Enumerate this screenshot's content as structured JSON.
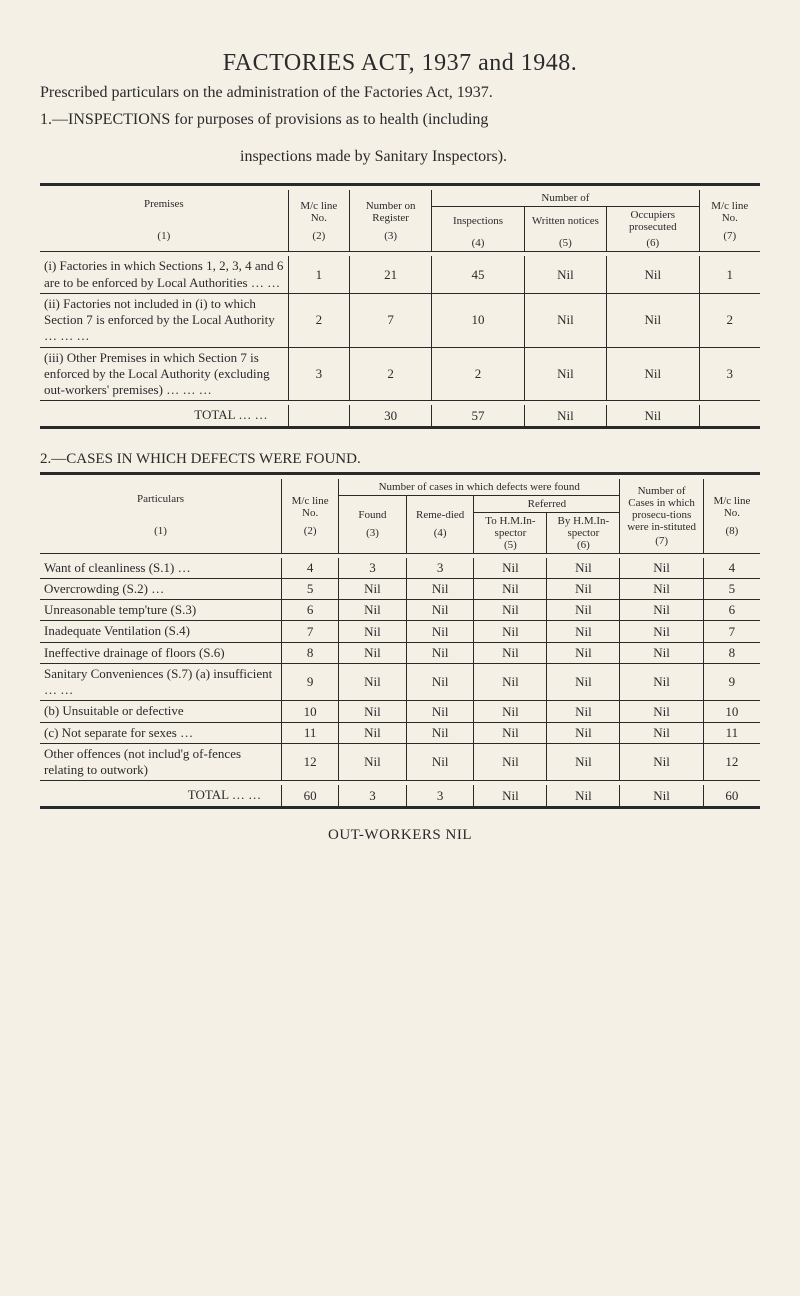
{
  "title": "FACTORIES ACT, 1937 and 1948.",
  "intro": "Prescribed particulars on the administration of the Factories Act, 1937.",
  "section1_head": "1.—INSPECTIONS for purposes of provisions as to health (including",
  "section1_head_cont": "inspections made by Sanitary Inspectors).",
  "t1": {
    "headers": {
      "premises": "Premises",
      "mcline": "M/c line No.",
      "numreg": "Number on Register",
      "numberof": "Number of",
      "inspections": "Inspections",
      "written": "Written notices",
      "occupiers": "Occupiers prosecuted",
      "mcline2": "M/c line No."
    },
    "colnums": [
      "(1)",
      "(2)",
      "(3)",
      "(4)",
      "(5)",
      "(6)",
      "(7)"
    ],
    "rows": [
      {
        "label": "(i) Factories in which Sections 1, 2, 3, 4 and 6 are to be enforced by Local Authorities   …   …",
        "v": [
          "1",
          "21",
          "45",
          "Nil",
          "Nil",
          "1"
        ]
      },
      {
        "label": "(ii) Factories not included in (i) to which Section 7 is enforced by the Local Authority   …   …   …",
        "v": [
          "2",
          "7",
          "10",
          "Nil",
          "Nil",
          "2"
        ]
      },
      {
        "label": "(iii) Other Premises in which Section 7 is enforced by the Local Authority (excluding out-workers' premises)   …   …   …",
        "v": [
          "3",
          "2",
          "2",
          "Nil",
          "Nil",
          "3"
        ]
      }
    ],
    "total": {
      "label": "TOTAL   …   …",
      "v": [
        "",
        "30",
        "57",
        "Nil",
        "Nil",
        ""
      ]
    }
  },
  "section2_head": "2.—CASES IN WHICH DEFECTS WERE FOUND.",
  "t2": {
    "headers": {
      "particulars": "Particulars",
      "mcline": "M/c line No.",
      "numcases": "Number of cases in which defects were found",
      "found": "Found",
      "reme": "Reme-died",
      "referred": "Referred",
      "to": "To H.M.In-spector",
      "by": "By H.M.In-spector",
      "numberwhich": "Number of Cases in which prosecu-tions were in-stituted",
      "mcline2": "M/c line No."
    },
    "colnums": [
      "(1)",
      "(2)",
      "(3)",
      "(4)",
      "(5)",
      "(6)",
      "(7)",
      "(8)"
    ],
    "rows": [
      {
        "label": "Want of cleanliness (S.1)   …",
        "v": [
          "4",
          "3",
          "3",
          "Nil",
          "Nil",
          "Nil",
          "4"
        ]
      },
      {
        "label": "Overcrowding (S.2)            …",
        "v": [
          "5",
          "Nil",
          "Nil",
          "Nil",
          "Nil",
          "Nil",
          "5"
        ]
      },
      {
        "label": "Unreasonable temp'ture (S.3)",
        "v": [
          "6",
          "Nil",
          "Nil",
          "Nil",
          "Nil",
          "Nil",
          "6"
        ]
      },
      {
        "label": "Inadequate Ventilation (S.4)",
        "v": [
          "7",
          "Nil",
          "Nil",
          "Nil",
          "Nil",
          "Nil",
          "7"
        ]
      },
      {
        "label": "Ineffective drainage of floors (S.6)",
        "v": [
          "8",
          "Nil",
          "Nil",
          "Nil",
          "Nil",
          "Nil",
          "8"
        ]
      },
      {
        "label": "Sanitary Conveniences (S.7) (a) insufficient   …   …",
        "v": [
          "9",
          "Nil",
          "Nil",
          "Nil",
          "Nil",
          "Nil",
          "9"
        ]
      },
      {
        "label": "  (b) Unsuitable or defective",
        "v": [
          "10",
          "Nil",
          "Nil",
          "Nil",
          "Nil",
          "Nil",
          "10"
        ]
      },
      {
        "label": "  (c) Not separate for sexes …",
        "v": [
          "11",
          "Nil",
          "Nil",
          "Nil",
          "Nil",
          "Nil",
          "11"
        ]
      },
      {
        "label": "Other offences (not includ'g of-fences relating to outwork)",
        "v": [
          "12",
          "Nil",
          "Nil",
          "Nil",
          "Nil",
          "Nil",
          "12"
        ]
      }
    ],
    "total": {
      "label": "TOTAL   …   …",
      "v": [
        "60",
        "3",
        "3",
        "Nil",
        "Nil",
        "Nil",
        "60"
      ]
    }
  },
  "footer": "OUT-WORKERS   NIL"
}
